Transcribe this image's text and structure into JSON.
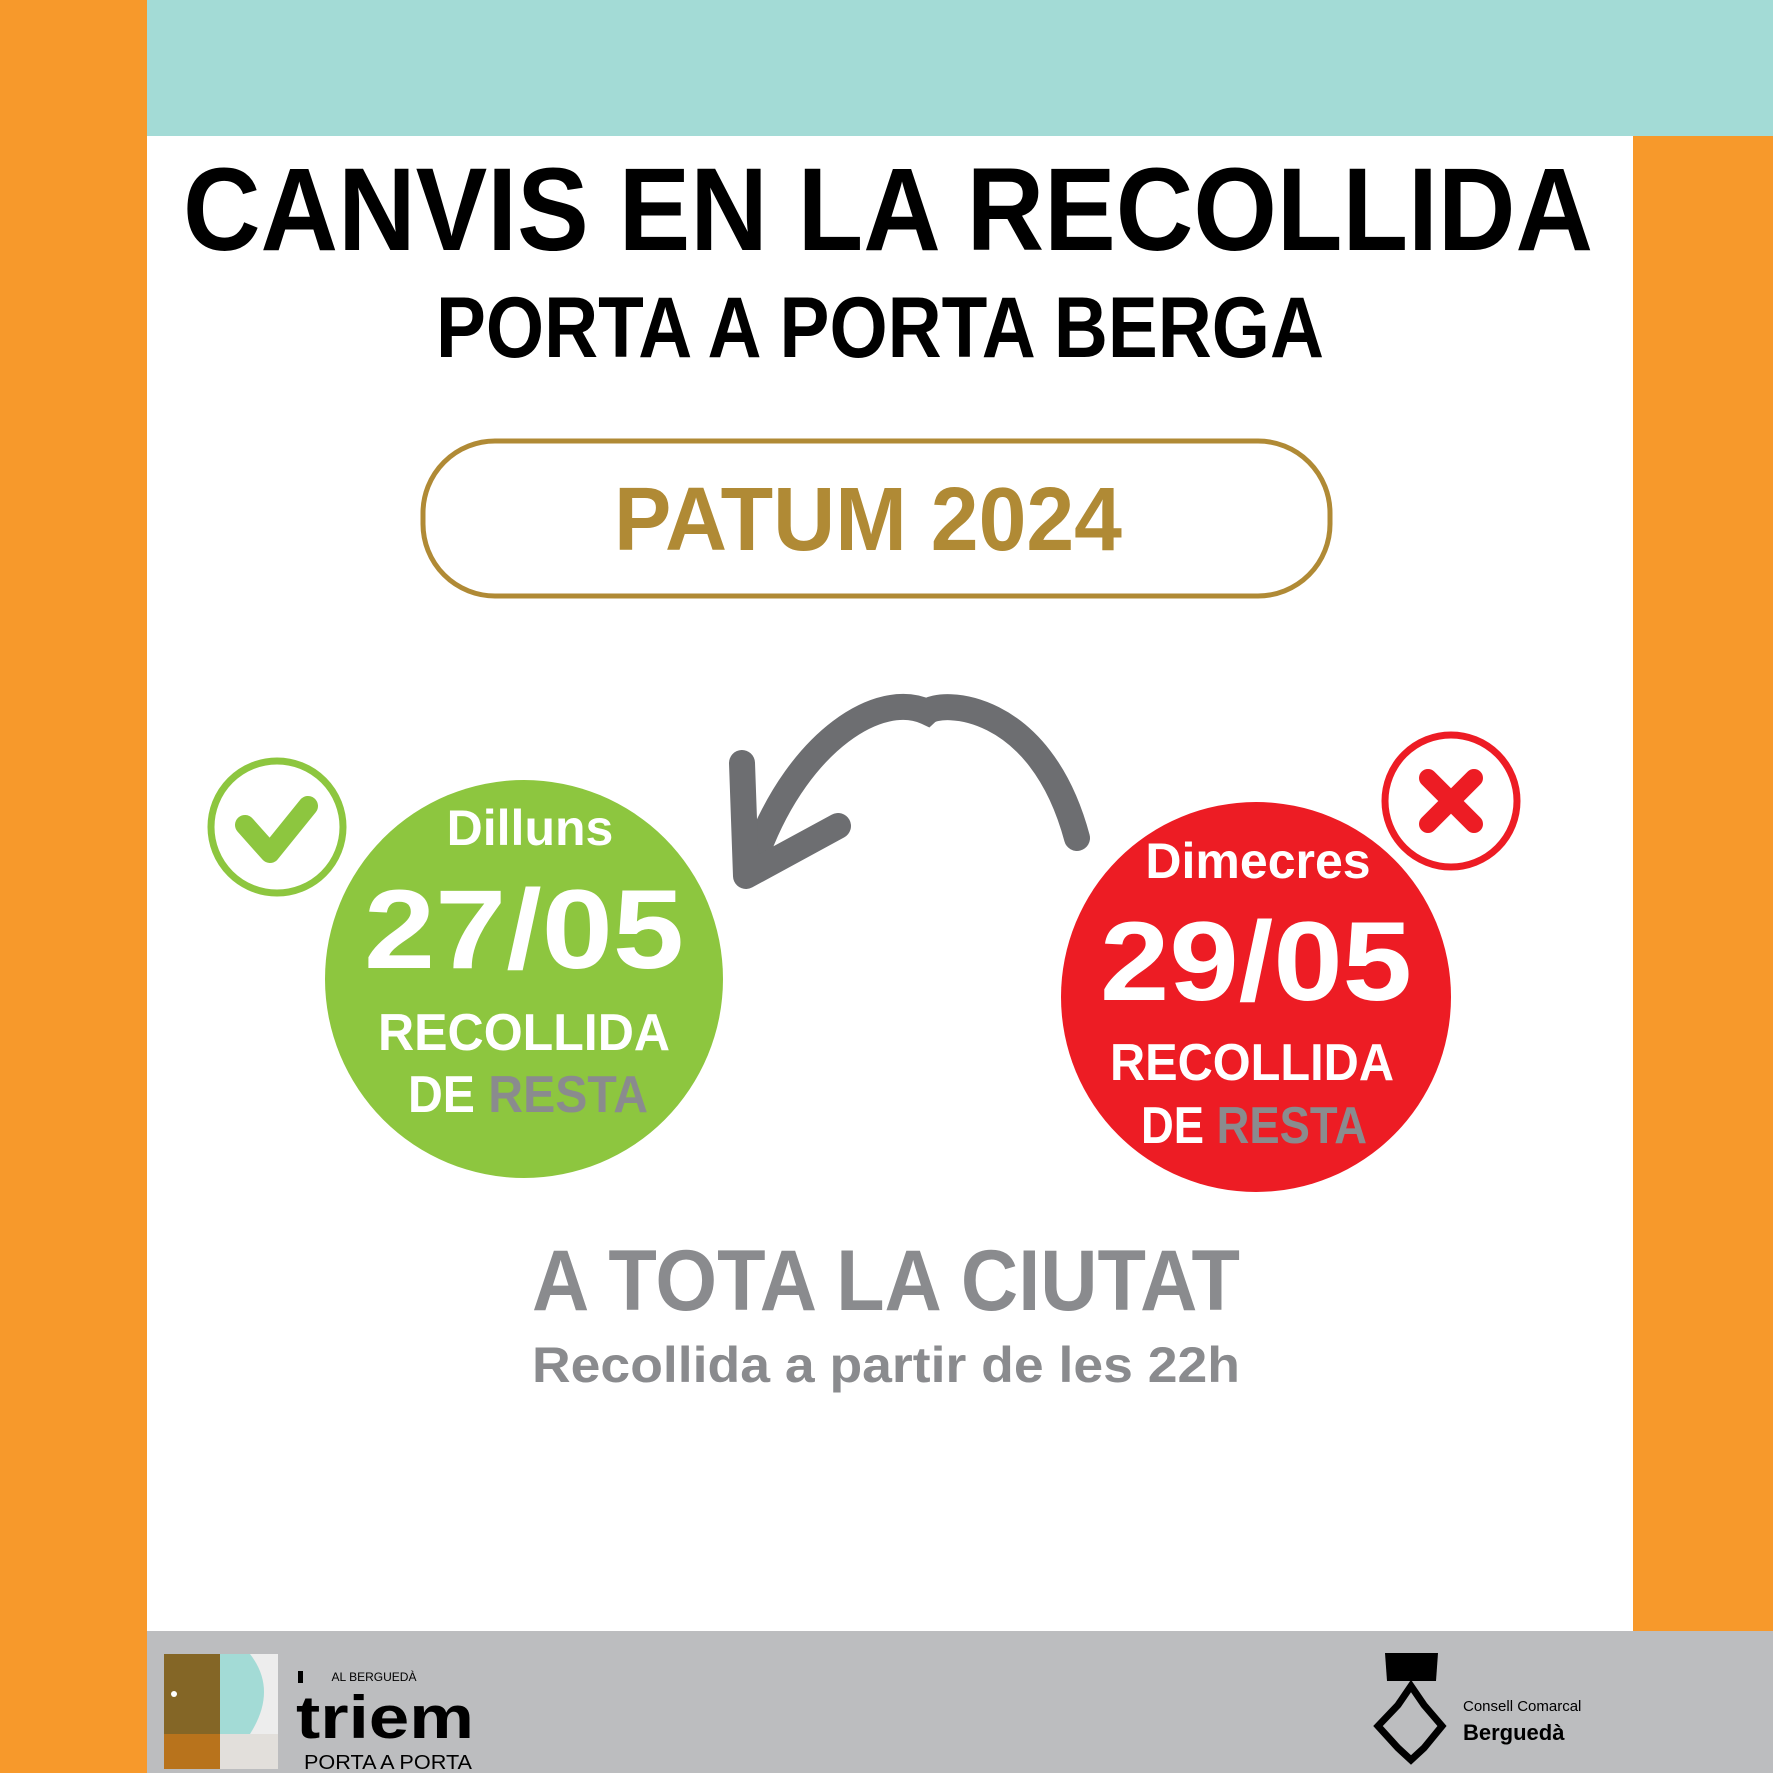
{
  "colors": {
    "orange": "#f7992b",
    "teal": "#a3dbd6",
    "gray_band": "#bcbdbf",
    "gold": "#b08a35",
    "green": "#8dc63f",
    "red": "#ed1c24",
    "arrow": "#6d6e71",
    "text_gray": "#8a8b8e"
  },
  "header": {
    "title": "CANVIS EN LA RECOLLIDA",
    "subtitle": "PORTA A PORTA BERGA"
  },
  "event": {
    "label": "PATUM 2024"
  },
  "new_day": {
    "weekday": "Dilluns",
    "date": "27/05",
    "line1": "RECOLLIDA",
    "line2_a": "DE ",
    "line2_b": "RESTA",
    "icon": "check-icon"
  },
  "old_day": {
    "weekday": "Dimecres",
    "date": "29/05",
    "line1": "RECOLLIDA",
    "line2_a": "DE ",
    "line2_b": "RESTA",
    "icon": "x-icon"
  },
  "scope": {
    "title": "A TOTA LA CIUTAT",
    "note": "Recollida a partir de les 22h"
  },
  "footer": {
    "triem": {
      "small": "AL BERGUEDÀ",
      "name": "triem",
      "tagline": "PORTA A PORTA"
    },
    "consell": {
      "line1": "Consell Comarcal",
      "line2": "Berguedà"
    }
  }
}
